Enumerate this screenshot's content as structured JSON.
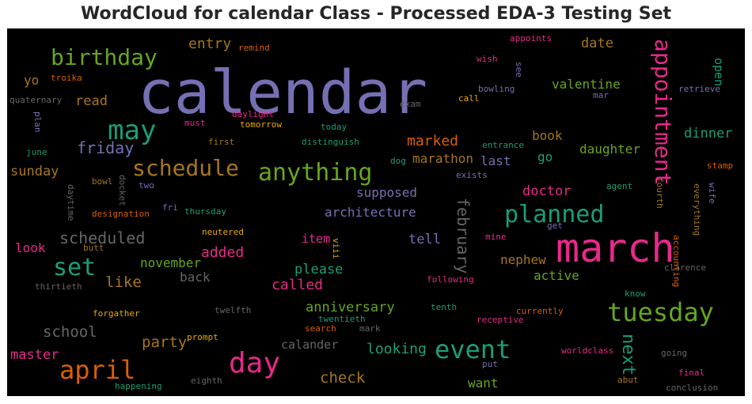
{
  "chart_data": {
    "type": "wordcloud",
    "title": "WordCloud for calendar Class - Processed EDA-3 Testing Set",
    "background": "#000000",
    "colors": {
      "purple": "#7570b3",
      "pink": "#e7298a",
      "green": "#1b9e77",
      "olive": "#66a61e",
      "orange": "#d95f02",
      "gold": "#e6ab02",
      "brown": "#a6761d",
      "gray": "#666666"
    },
    "words": [
      {
        "text": "calendar",
        "color": "purple"
      },
      {
        "text": "march",
        "color": "pink"
      },
      {
        "text": "birthday",
        "color": "olive"
      },
      {
        "text": "may",
        "color": "green"
      },
      {
        "text": "schedule",
        "color": "brown"
      },
      {
        "text": "anything",
        "color": "olive"
      },
      {
        "text": "appointment",
        "color": "pink"
      },
      {
        "text": "planned",
        "color": "green"
      },
      {
        "text": "event",
        "color": "green"
      },
      {
        "text": "tuesday",
        "color": "olive"
      },
      {
        "text": "day",
        "color": "pink"
      },
      {
        "text": "april",
        "color": "orange"
      },
      {
        "text": "set",
        "color": "green"
      },
      {
        "text": "scheduled",
        "color": "gray"
      },
      {
        "text": "february",
        "color": "gray"
      },
      {
        "text": "next",
        "color": "green"
      },
      {
        "text": "friday",
        "color": "purple"
      },
      {
        "text": "entry",
        "color": "brown"
      },
      {
        "text": "date",
        "color": "brown"
      },
      {
        "text": "valentine",
        "color": "olive"
      },
      {
        "text": "open",
        "color": "green"
      },
      {
        "text": "read",
        "color": "brown"
      },
      {
        "text": "yo",
        "color": "brown"
      },
      {
        "text": "sunday",
        "color": "brown"
      },
      {
        "text": "marked",
        "color": "orange"
      },
      {
        "text": "book",
        "color": "brown"
      },
      {
        "text": "dinner",
        "color": "green"
      },
      {
        "text": "daughter",
        "color": "olive"
      },
      {
        "text": "marathon",
        "color": "brown"
      },
      {
        "text": "last",
        "color": "purple"
      },
      {
        "text": "go",
        "color": "green"
      },
      {
        "text": "supposed",
        "color": "purple"
      },
      {
        "text": "doctor",
        "color": "pink"
      },
      {
        "text": "architecture",
        "color": "purple"
      },
      {
        "text": "tell",
        "color": "purple"
      },
      {
        "text": "item",
        "color": "pink"
      },
      {
        "text": "added",
        "color": "pink"
      },
      {
        "text": "november",
        "color": "olive"
      },
      {
        "text": "like",
        "color": "brown"
      },
      {
        "text": "back",
        "color": "gray"
      },
      {
        "text": "called",
        "color": "pink"
      },
      {
        "text": "please",
        "color": "green"
      },
      {
        "text": "nephew",
        "color": "brown"
      },
      {
        "text": "active",
        "color": "olive"
      },
      {
        "text": "look",
        "color": "pink"
      },
      {
        "text": "anniversary",
        "color": "olive"
      },
      {
        "text": "school",
        "color": "gray"
      },
      {
        "text": "party",
        "color": "brown"
      },
      {
        "text": "calander",
        "color": "gray"
      },
      {
        "text": "looking",
        "color": "green"
      },
      {
        "text": "master",
        "color": "pink"
      },
      {
        "text": "check",
        "color": "brown"
      },
      {
        "text": "want",
        "color": "olive"
      },
      {
        "text": "remind",
        "color": "orange"
      },
      {
        "text": "appoints",
        "color": "pink"
      },
      {
        "text": "wish",
        "color": "pink"
      },
      {
        "text": "see",
        "color": "purple"
      },
      {
        "text": "troika",
        "color": "orange"
      },
      {
        "text": "quaternary",
        "color": "gray"
      },
      {
        "text": "call",
        "color": "gold"
      },
      {
        "text": "bowling",
        "color": "purple"
      },
      {
        "text": "mar",
        "color": "purple"
      },
      {
        "text": "retrieve",
        "color": "purple"
      },
      {
        "text": "exam",
        "color": "gray"
      },
      {
        "text": "plan",
        "color": "purple"
      },
      {
        "text": "must",
        "color": "pink"
      },
      {
        "text": "daylight",
        "color": "pink"
      },
      {
        "text": "tomorrow",
        "color": "gold"
      },
      {
        "text": "today",
        "color": "green"
      },
      {
        "text": "june",
        "color": "green"
      },
      {
        "text": "first",
        "color": "brown"
      },
      {
        "text": "distinguish",
        "color": "green"
      },
      {
        "text": "entrance",
        "color": "green"
      },
      {
        "text": "dog",
        "color": "green"
      },
      {
        "text": "exists",
        "color": "purple"
      },
      {
        "text": "daytime",
        "color": "gray"
      },
      {
        "text": "docket",
        "color": "gray"
      },
      {
        "text": "bowl",
        "color": "brown"
      },
      {
        "text": "two",
        "color": "purple"
      },
      {
        "text": "agent",
        "color": "green"
      },
      {
        "text": "fourth",
        "color": "brown"
      },
      {
        "text": "stamp",
        "color": "orange"
      },
      {
        "text": "wife",
        "color": "purple"
      },
      {
        "text": "everything",
        "color": "brown"
      },
      {
        "text": "fri",
        "color": "purple"
      },
      {
        "text": "thursday",
        "color": "green"
      },
      {
        "text": "designation",
        "color": "orange"
      },
      {
        "text": "get",
        "color": "purple"
      },
      {
        "text": "accounting",
        "color": "orange"
      },
      {
        "text": "neutered",
        "color": "gold"
      },
      {
        "text": "mine",
        "color": "pink"
      },
      {
        "text": "butt",
        "color": "brown"
      },
      {
        "text": "viii",
        "color": "gold"
      },
      {
        "text": "clarence",
        "color": "gray"
      },
      {
        "text": "thirtieth",
        "color": "gray"
      },
      {
        "text": "following",
        "color": "pink"
      },
      {
        "text": "know",
        "color": "green"
      },
      {
        "text": "twelfth",
        "color": "gray"
      },
      {
        "text": "tenth",
        "color": "green"
      },
      {
        "text": "currently",
        "color": "orange"
      },
      {
        "text": "forgather",
        "color": "gold"
      },
      {
        "text": "twentieth",
        "color": "green"
      },
      {
        "text": "receptive",
        "color": "pink"
      },
      {
        "text": "prompt",
        "color": "gold"
      },
      {
        "text": "search",
        "color": "orange"
      },
      {
        "text": "mark",
        "color": "gray"
      },
      {
        "text": "worldclass",
        "color": "pink"
      },
      {
        "text": "going",
        "color": "gray"
      },
      {
        "text": "put",
        "color": "purple"
      },
      {
        "text": "final",
        "color": "pink"
      },
      {
        "text": "abut",
        "color": "brown"
      },
      {
        "text": "happening",
        "color": "green"
      },
      {
        "text": "eighth",
        "color": "gray"
      },
      {
        "text": "conclusion",
        "color": "gray"
      }
    ]
  }
}
